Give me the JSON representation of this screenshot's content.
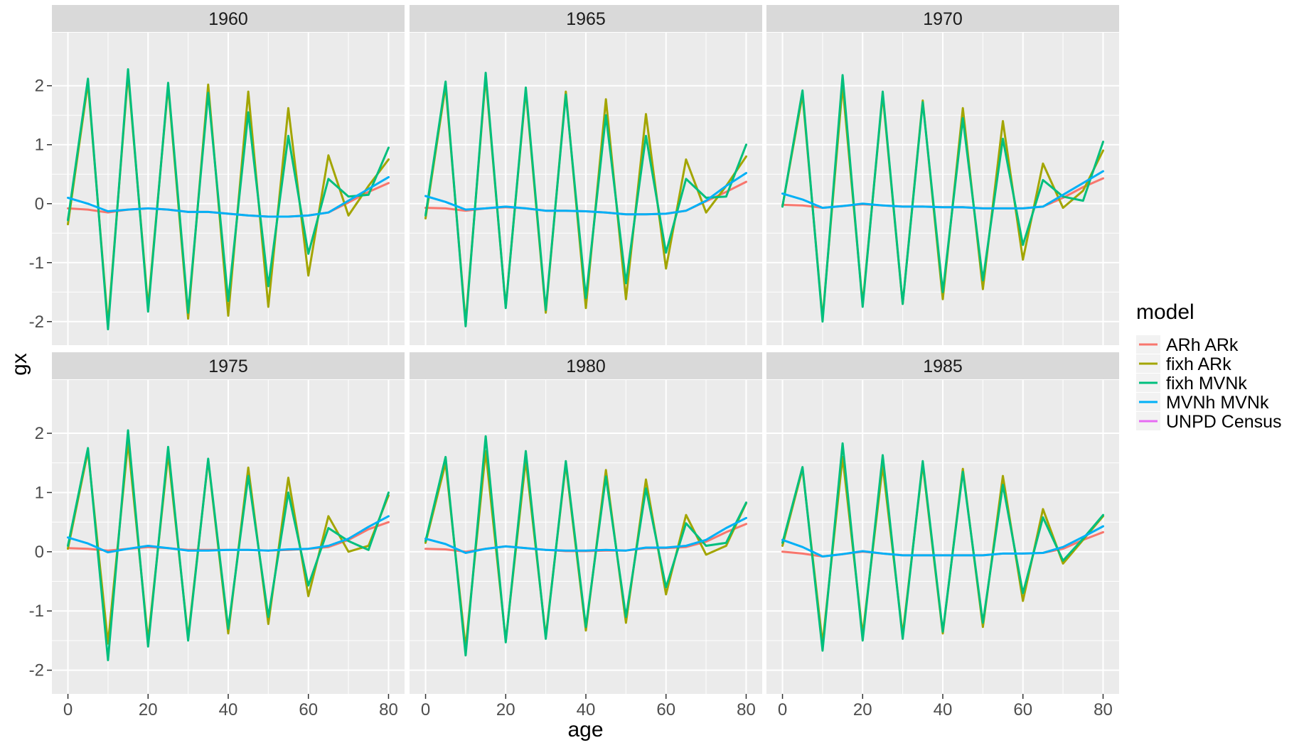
{
  "chart_data": {
    "type": "line",
    "xlabel": "age",
    "ylabel": "gx",
    "xlim": [
      -4,
      84
    ],
    "ylim": [
      -2.4,
      2.9
    ],
    "x_ticks": [
      0,
      20,
      40,
      60,
      80
    ],
    "y_ticks": [
      -2,
      -1,
      0,
      1,
      2
    ],
    "x_tick_labels": [
      "0",
      "20",
      "40",
      "60",
      "80"
    ],
    "y_tick_labels": [
      "-2",
      "-1",
      "0",
      "1",
      "2"
    ],
    "grid": true,
    "facet_layout": {
      "rows": 2,
      "cols": 3
    },
    "legend": {
      "title": "model",
      "position": "right",
      "entries": [
        "ARh ARk",
        "fixh ARk",
        "fixh MVNk",
        "MVNh MVNk",
        "UNPD Census"
      ]
    },
    "series_colors": {
      "ARh ARk": "#F8766D",
      "fixh ARk": "#A3A500",
      "fixh MVNk": "#00BF7D",
      "MVNh MVNk": "#00B0F6",
      "UNPD Census": "#E76BF3"
    },
    "x": [
      0,
      5,
      10,
      15,
      20,
      25,
      30,
      35,
      40,
      45,
      50,
      55,
      60,
      65,
      70,
      75,
      80
    ],
    "panels": [
      {
        "label": "1960",
        "series": [
          {
            "name": "ARh ARk",
            "values": [
              -0.08,
              -0.1,
              -0.15,
              -0.1,
              -0.08,
              -0.1,
              -0.14,
              -0.14,
              -0.17,
              -0.2,
              -0.22,
              -0.22,
              -0.2,
              -0.15,
              0.02,
              0.2,
              0.35
            ]
          },
          {
            "name": "fixh ARk",
            "values": [
              -0.35,
              2.05,
              -2.05,
              2.2,
              -1.75,
              2.0,
              -1.95,
              2.02,
              -1.9,
              1.9,
              -1.75,
              1.62,
              -1.22,
              0.82,
              -0.2,
              0.3,
              0.75
            ]
          },
          {
            "name": "fixh MVNk",
            "values": [
              -0.28,
              2.12,
              -2.13,
              2.28,
              -1.83,
              2.05,
              -1.85,
              1.88,
              -1.65,
              1.55,
              -1.4,
              1.15,
              -0.85,
              0.42,
              0.12,
              0.15,
              0.95
            ]
          },
          {
            "name": "MVNh MVNk",
            "values": [
              0.1,
              0.0,
              -0.13,
              -0.1,
              -0.08,
              -0.1,
              -0.14,
              -0.14,
              -0.17,
              -0.2,
              -0.22,
              -0.22,
              -0.2,
              -0.15,
              0.05,
              0.25,
              0.45
            ]
          }
        ]
      },
      {
        "label": "1965",
        "series": [
          {
            "name": "ARh ARk",
            "values": [
              -0.07,
              -0.08,
              -0.12,
              -0.08,
              -0.06,
              -0.08,
              -0.12,
              -0.12,
              -0.13,
              -0.15,
              -0.18,
              -0.18,
              -0.17,
              -0.12,
              0.04,
              0.2,
              0.37
            ]
          },
          {
            "name": "fixh ARk",
            "values": [
              -0.25,
              2.0,
              -2.02,
              2.15,
              -1.75,
              1.92,
              -1.85,
              1.9,
              -1.77,
              1.77,
              -1.62,
              1.52,
              -1.1,
              0.75,
              -0.15,
              0.3,
              0.8
            ]
          },
          {
            "name": "fixh MVNk",
            "values": [
              -0.2,
              2.07,
              -2.08,
              2.22,
              -1.77,
              1.97,
              -1.8,
              1.85,
              -1.6,
              1.5,
              -1.35,
              1.15,
              -0.83,
              0.42,
              0.1,
              0.12,
              1.0
            ]
          },
          {
            "name": "MVNh MVNk",
            "values": [
              0.13,
              0.03,
              -0.1,
              -0.08,
              -0.05,
              -0.08,
              -0.12,
              -0.12,
              -0.13,
              -0.15,
              -0.18,
              -0.18,
              -0.17,
              -0.12,
              0.05,
              0.3,
              0.52
            ]
          }
        ]
      },
      {
        "label": "1970",
        "series": [
          {
            "name": "ARh ARk",
            "values": [
              -0.02,
              -0.03,
              -0.07,
              -0.04,
              -0.01,
              -0.03,
              -0.05,
              -0.05,
              -0.06,
              -0.06,
              -0.08,
              -0.08,
              -0.08,
              -0.05,
              0.1,
              0.28,
              0.43
            ]
          },
          {
            "name": "fixh ARk",
            "values": [
              -0.05,
              1.85,
              -1.95,
              2.0,
              -1.7,
              1.85,
              -1.7,
              1.75,
              -1.62,
              1.62,
              -1.45,
              1.4,
              -0.95,
              0.68,
              -0.07,
              0.22,
              0.9
            ]
          },
          {
            "name": "fixh MVNk",
            "values": [
              -0.05,
              1.92,
              -2.0,
              2.18,
              -1.75,
              1.9,
              -1.7,
              1.72,
              -1.5,
              1.45,
              -1.3,
              1.1,
              -0.7,
              0.4,
              0.12,
              0.05,
              1.05
            ]
          },
          {
            "name": "MVNh MVNk",
            "values": [
              0.17,
              0.07,
              -0.07,
              -0.04,
              0.0,
              -0.03,
              -0.05,
              -0.05,
              -0.06,
              -0.06,
              -0.08,
              -0.08,
              -0.08,
              -0.05,
              0.15,
              0.35,
              0.55
            ]
          }
        ]
      },
      {
        "label": "1975",
        "series": [
          {
            "name": "ARh ARk",
            "values": [
              0.06,
              0.05,
              0.02,
              0.05,
              0.08,
              0.06,
              0.03,
              0.03,
              0.03,
              0.03,
              0.02,
              0.03,
              0.05,
              0.08,
              0.2,
              0.38,
              0.5
            ]
          },
          {
            "name": "fixh ARk",
            "values": [
              0.05,
              1.7,
              -1.55,
              1.85,
              -1.5,
              1.65,
              -1.45,
              1.55,
              -1.38,
              1.42,
              -1.22,
              1.25,
              -0.75,
              0.6,
              0.0,
              0.1,
              0.95
            ]
          },
          {
            "name": "fixh MVNk",
            "values": [
              0.1,
              1.75,
              -1.83,
              2.05,
              -1.6,
              1.77,
              -1.5,
              1.57,
              -1.3,
              1.28,
              -1.1,
              1.0,
              -0.57,
              0.4,
              0.18,
              0.03,
              1.0
            ]
          },
          {
            "name": "MVNh MVNk",
            "values": [
              0.24,
              0.14,
              -0.01,
              0.05,
              0.1,
              0.06,
              0.02,
              0.02,
              0.03,
              0.03,
              0.02,
              0.04,
              0.05,
              0.1,
              0.22,
              0.42,
              0.6
            ]
          }
        ]
      },
      {
        "label": "1980",
        "series": [
          {
            "name": "ARh ARk",
            "values": [
              0.05,
              0.04,
              0.0,
              0.05,
              0.09,
              0.06,
              0.03,
              0.01,
              0.01,
              0.02,
              0.02,
              0.06,
              0.06,
              0.08,
              0.17,
              0.33,
              0.47
            ]
          },
          {
            "name": "fixh ARk",
            "values": [
              0.15,
              1.5,
              -1.62,
              1.7,
              -1.5,
              1.55,
              -1.43,
              1.48,
              -1.33,
              1.38,
              -1.2,
              1.22,
              -0.72,
              0.62,
              -0.05,
              0.1,
              0.82
            ]
          },
          {
            "name": "fixh MVNk",
            "values": [
              0.18,
              1.6,
              -1.75,
              1.95,
              -1.53,
              1.7,
              -1.47,
              1.53,
              -1.27,
              1.27,
              -1.1,
              1.07,
              -0.6,
              0.48,
              0.1,
              0.15,
              0.83
            ]
          },
          {
            "name": "MVNh MVNk",
            "values": [
              0.22,
              0.13,
              -0.02,
              0.05,
              0.09,
              0.06,
              0.03,
              0.02,
              0.02,
              0.03,
              0.02,
              0.07,
              0.07,
              0.1,
              0.2,
              0.4,
              0.57
            ]
          }
        ]
      },
      {
        "label": "1985",
        "series": [
          {
            "name": "ARh ARk",
            "values": [
              0.0,
              -0.03,
              -0.08,
              -0.04,
              0.0,
              -0.03,
              -0.06,
              -0.06,
              -0.06,
              -0.06,
              -0.06,
              -0.03,
              -0.03,
              -0.02,
              0.05,
              0.2,
              0.33
            ]
          },
          {
            "name": "fixh ARk",
            "values": [
              0.1,
              1.4,
              -1.55,
              1.6,
              -1.4,
              1.45,
              -1.4,
              1.48,
              -1.38,
              1.4,
              -1.27,
              1.28,
              -0.83,
              0.72,
              -0.2,
              0.2,
              0.6
            ]
          },
          {
            "name": "fixh MVNk",
            "values": [
              0.15,
              1.43,
              -1.67,
              1.83,
              -1.5,
              1.63,
              -1.47,
              1.53,
              -1.35,
              1.35,
              -1.2,
              1.13,
              -0.7,
              0.58,
              -0.15,
              0.22,
              0.62
            ]
          },
          {
            "name": "MVNh MVNk",
            "values": [
              0.2,
              0.08,
              -0.08,
              -0.04,
              0.01,
              -0.03,
              -0.06,
              -0.06,
              -0.06,
              -0.06,
              -0.06,
              -0.03,
              -0.03,
              -0.02,
              0.08,
              0.25,
              0.43
            ]
          }
        ]
      }
    ]
  }
}
